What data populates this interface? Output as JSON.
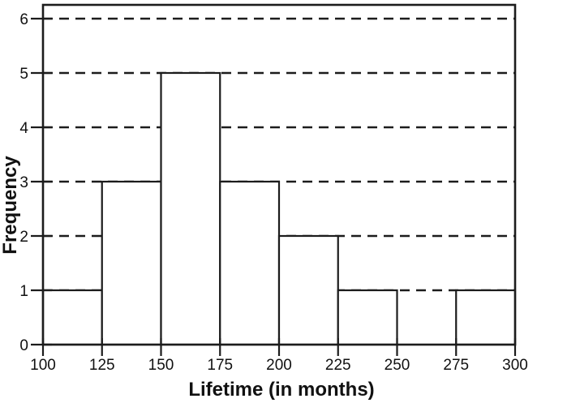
{
  "chart_data": {
    "type": "bar",
    "subtype": "histogram",
    "title": "",
    "xlabel": "Lifetime (in months)",
    "ylabel": "Frequency",
    "bin_edges": [
      100,
      125,
      150,
      175,
      200,
      225,
      250,
      275,
      300
    ],
    "frequencies": [
      1,
      3,
      5,
      3,
      2,
      1,
      0,
      1
    ],
    "x_tick_labels": [
      "100",
      "125",
      "150",
      "175",
      "200",
      "225",
      "250",
      "275",
      "300"
    ],
    "y_tick_labels": [
      "0",
      "1",
      "2",
      "3",
      "4",
      "5",
      "6"
    ],
    "xlim": [
      100,
      300
    ],
    "ylim": [
      0,
      6.25
    ],
    "grid": {
      "horizontal": true,
      "style": "dashed",
      "at": [
        1,
        2,
        3,
        4,
        5,
        6
      ]
    },
    "legend": "none",
    "colors": {
      "line": "#1c1c1c",
      "bar_fill": "#ffffff",
      "background": "#ffffff",
      "text": "#111111"
    }
  }
}
